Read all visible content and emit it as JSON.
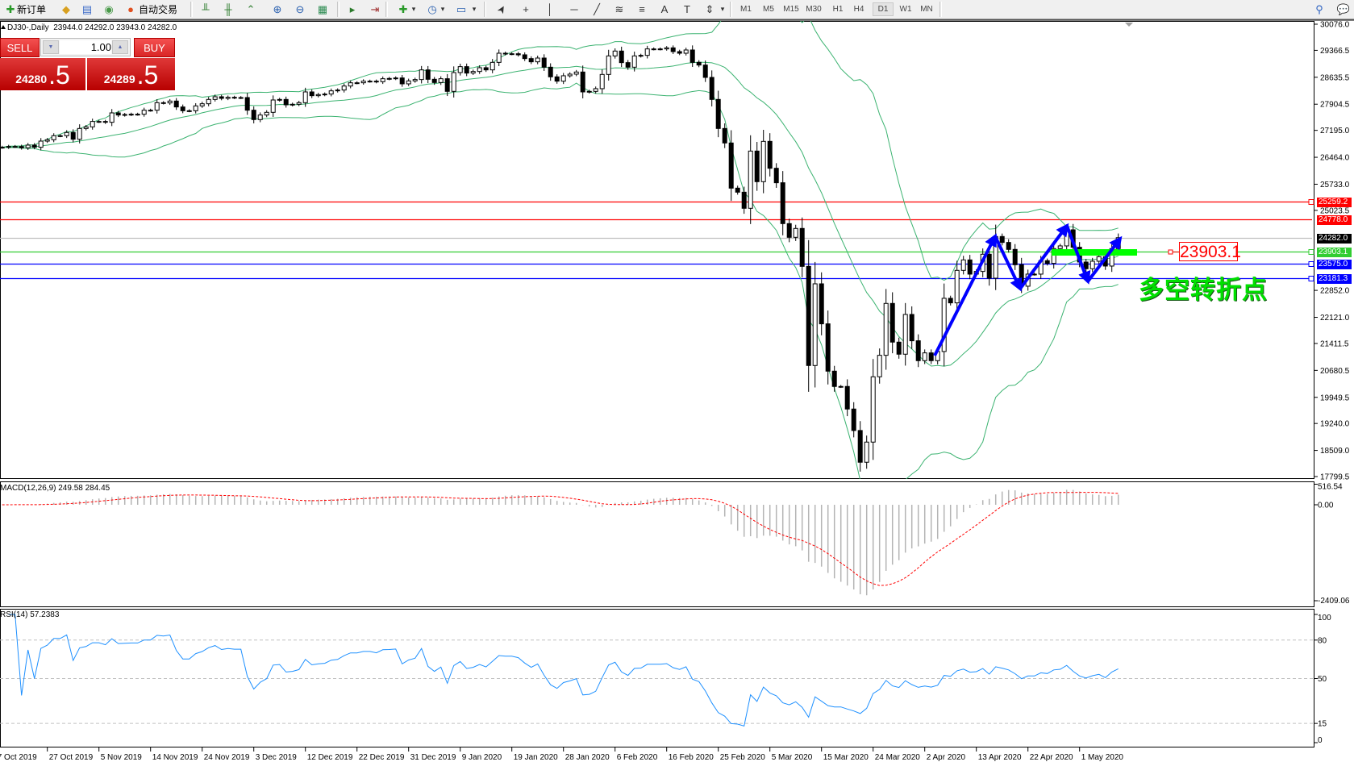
{
  "toolbar": {
    "new_order_label": "新订单",
    "auto_trading_label": "自动交易",
    "icons": [
      {
        "name": "new-order-icon",
        "glyph": "✚",
        "color": "#2a9a2a"
      },
      {
        "name": "metaeditor-icon",
        "glyph": "◆",
        "color": "#d8a020"
      },
      {
        "name": "history-icon",
        "glyph": "▤",
        "color": "#3a6ac8"
      },
      {
        "name": "signals-icon",
        "glyph": "◉",
        "color": "#4a9a4a"
      },
      {
        "name": "auto-trading-icon",
        "glyph": "●",
        "color": "#e05020"
      },
      {
        "name": "bar-chart-icon",
        "glyph": "╨",
        "color": "#2a7a2a"
      },
      {
        "name": "candlestick-chart-icon",
        "glyph": "╫",
        "color": "#2a7a2a"
      },
      {
        "name": "line-chart-icon",
        "glyph": "⌃",
        "color": "#2a7a2a"
      },
      {
        "name": "zoom-in-icon",
        "glyph": "⊕",
        "color": "#2a60b0"
      },
      {
        "name": "zoom-out-icon",
        "glyph": "⊖",
        "color": "#2a60b0"
      },
      {
        "name": "tile-windows-icon",
        "glyph": "▦",
        "color": "#2a8a50"
      },
      {
        "name": "chart-shift-icon",
        "glyph": "▸",
        "color": "#2a7a2a"
      },
      {
        "name": "auto-scroll-icon",
        "glyph": "⇥",
        "color": "#a03030"
      },
      {
        "name": "indicators-icon",
        "glyph": "✚",
        "color": "#2a9a2a"
      },
      {
        "name": "periods-icon",
        "glyph": "◷",
        "color": "#2a60b0"
      },
      {
        "name": "templates-icon",
        "glyph": "▭",
        "color": "#2a60b0"
      },
      {
        "name": "cursor-icon",
        "glyph": "➤",
        "color": "#333"
      },
      {
        "name": "crosshair-icon",
        "glyph": "+",
        "color": "#333"
      },
      {
        "name": "vertical-line-icon",
        "glyph": "│",
        "color": "#333"
      },
      {
        "name": "horizontal-line-icon",
        "glyph": "─",
        "color": "#333"
      },
      {
        "name": "trendline-icon",
        "glyph": "╱",
        "color": "#333"
      },
      {
        "name": "fibonacci-icon",
        "glyph": "≋",
        "color": "#333"
      },
      {
        "name": "fibo-fan-icon",
        "glyph": "≡",
        "color": "#333"
      },
      {
        "name": "text-icon",
        "glyph": "A",
        "color": "#333"
      },
      {
        "name": "text-label-icon",
        "glyph": "T",
        "color": "#333"
      },
      {
        "name": "arrows-icon",
        "glyph": "⇕",
        "color": "#333"
      },
      {
        "name": "search-icon",
        "glyph": "⚲",
        "color": "#2a60c0"
      },
      {
        "name": "chat-icon",
        "glyph": "💬",
        "color": "#888"
      }
    ],
    "timeframes": [
      "M1",
      "M5",
      "M15",
      "M30",
      "H1",
      "H4",
      "D1",
      "W1",
      "MN"
    ],
    "active_timeframe": "D1"
  },
  "chart": {
    "title": "DJ30-,Daily  23944.0 24292.0 23943.0 24282.0"
  },
  "trade_panel": {
    "sell_label": "SELL",
    "buy_label": "BUY",
    "lot_size": "1.00",
    "sell_price_main": "24280",
    "sell_price_frac": ".5",
    "buy_price_main": "24289",
    "buy_price_frac": ".5"
  },
  "annotation": {
    "price_box": "23903.1",
    "text": "多空转折点"
  },
  "indicators": {
    "macd_label": "MACD(12,26,9) 249.58 284.45",
    "rsi_label": "RSI(14) 57.2383"
  },
  "chart_data": {
    "type": "candlestick",
    "symbol": "DJ30-",
    "timeframe": "Daily",
    "price_range": [
      17799.5,
      30076.0
    ],
    "price_axis_labels": [
      "30076.0",
      "29366.5",
      "28635.5",
      "27904.5",
      "27195.0",
      "26464.0",
      "25733.0",
      "25023.5",
      "22852.0",
      "22121.0",
      "21411.5",
      "20680.5",
      "19949.5",
      "19240.0",
      "18509.0",
      "17799.5"
    ],
    "date_labels": [
      "7 Oct 2019",
      "27 Oct 2019",
      "5 Nov 2019",
      "14 Nov 2019",
      "24 Nov 2019",
      "3 Dec 2019",
      "12 Dec 2019",
      "22 Dec 2019",
      "31 Dec 2019",
      "9 Jan 2020",
      "19 Jan 2020",
      "28 Jan 2020",
      "6 Feb 2020",
      "16 Feb 2020",
      "25 Feb 2020",
      "5 Mar 2020",
      "15 Mar 2020",
      "24 Mar 2020",
      "2 Apr 2020",
      "13 Apr 2020",
      "22 Apr 2020",
      "1 May 2020"
    ],
    "closes": [
      26736,
      26757,
      26757,
      26721,
      26794,
      26736,
      26903,
      26940,
      27049,
      27049,
      27137,
      26954,
      27246,
      27290,
      27436,
      27436,
      27414,
      27669,
      27611,
      27625,
      27633,
      27633,
      27742,
      27742,
      27946,
      27939,
      27990,
      27830,
      27727,
      27727,
      27859,
      27917,
      28034,
      28107,
      28063,
      28092,
      28085,
      28085,
      27742,
      27487,
      27611,
      27684,
      28019,
      28034,
      27888,
      27903,
      27946,
      28238,
      28136,
      28165,
      28180,
      28267,
      28289,
      28398,
      28486,
      28486,
      28530,
      28530,
      28515,
      28596,
      28603,
      28617,
      28457,
      28537,
      28574,
      28836,
      28581,
      28493,
      28596,
      28253,
      28763,
      28924,
      28749,
      28792,
      28895,
      28836,
      29040,
      29288,
      29274,
      29274,
      29245,
      29142,
      29055,
      29157,
      28909,
      28647,
      28530,
      28676,
      28720,
      28778,
      28238,
      28253,
      28326,
      28712,
      29215,
      29347,
      29033,
      28909,
      29215,
      29230,
      29405,
      29405,
      29405,
      29434,
      29332,
      29288,
      29376,
      29040,
      28967,
      28632,
      28034,
      27246,
      26852,
      25627,
      25517,
      25080,
      26633,
      25802,
      26896,
      26166,
      25773,
      24664,
      24292,
      24533,
      23504,
      20813,
      23030,
      21944,
      20660,
      20245,
      20245,
      19632,
      19049,
      18188,
      18735,
      20507,
      21090,
      22498,
      21448,
      21120,
      22199,
      21484,
      20945,
      21156,
      20945,
      21193,
      22637,
      22513,
      23395,
      23679,
      23293,
      23366,
      23833,
      23183,
      24314,
      24153,
      23964,
      23548,
      22965,
      23293,
      23293,
      23658,
      23585,
      23986,
      24059,
      24496,
      24022,
      23621,
      23439,
      23643,
      23767,
      23512,
      23986,
      24282
    ],
    "bollinger": {
      "period": 20,
      "deviations": 2,
      "color": "#3cb371"
    },
    "horizontal_lines": [
      {
        "price": "25259.2",
        "color": "#ff0000",
        "label_bg": "#ff0000",
        "marker": true
      },
      {
        "price": "24778.0",
        "color": "#ff0000",
        "label_bg": "#ff0000",
        "marker": false
      },
      {
        "price": "24282.0",
        "color": "#c0c0c0",
        "label_bg": "#000000",
        "marker": false
      },
      {
        "price": "23903.1",
        "color": "#32cd32",
        "label_bg": "#32cd32",
        "marker": true
      },
      {
        "price": "23575.0",
        "color": "#0000ff",
        "label_bg": "#0000ff",
        "marker": true
      },
      {
        "price": "23181.3",
        "color": "#0000ff",
        "label_bg": "#0000ff",
        "marker": true
      }
    ],
    "macd": {
      "fast": 12,
      "slow": 26,
      "signal": 9,
      "range": [
        -2409.06,
        516.54
      ],
      "axis_labels": [
        "516.54",
        "0.00",
        "-2409.06"
      ],
      "hist_color": "#b4b4b4",
      "signal_color": "#ff0000"
    },
    "rsi": {
      "period": 14,
      "range": [
        0,
        100
      ],
      "levels": [
        80,
        50,
        15
      ],
      "axis_labels": [
        "100",
        "80",
        "50",
        "15",
        "0"
      ],
      "color": "#1e90ff"
    },
    "drawn_zigzag_color": "#0000ff",
    "highlight_bar_color": "#00ff00"
  }
}
